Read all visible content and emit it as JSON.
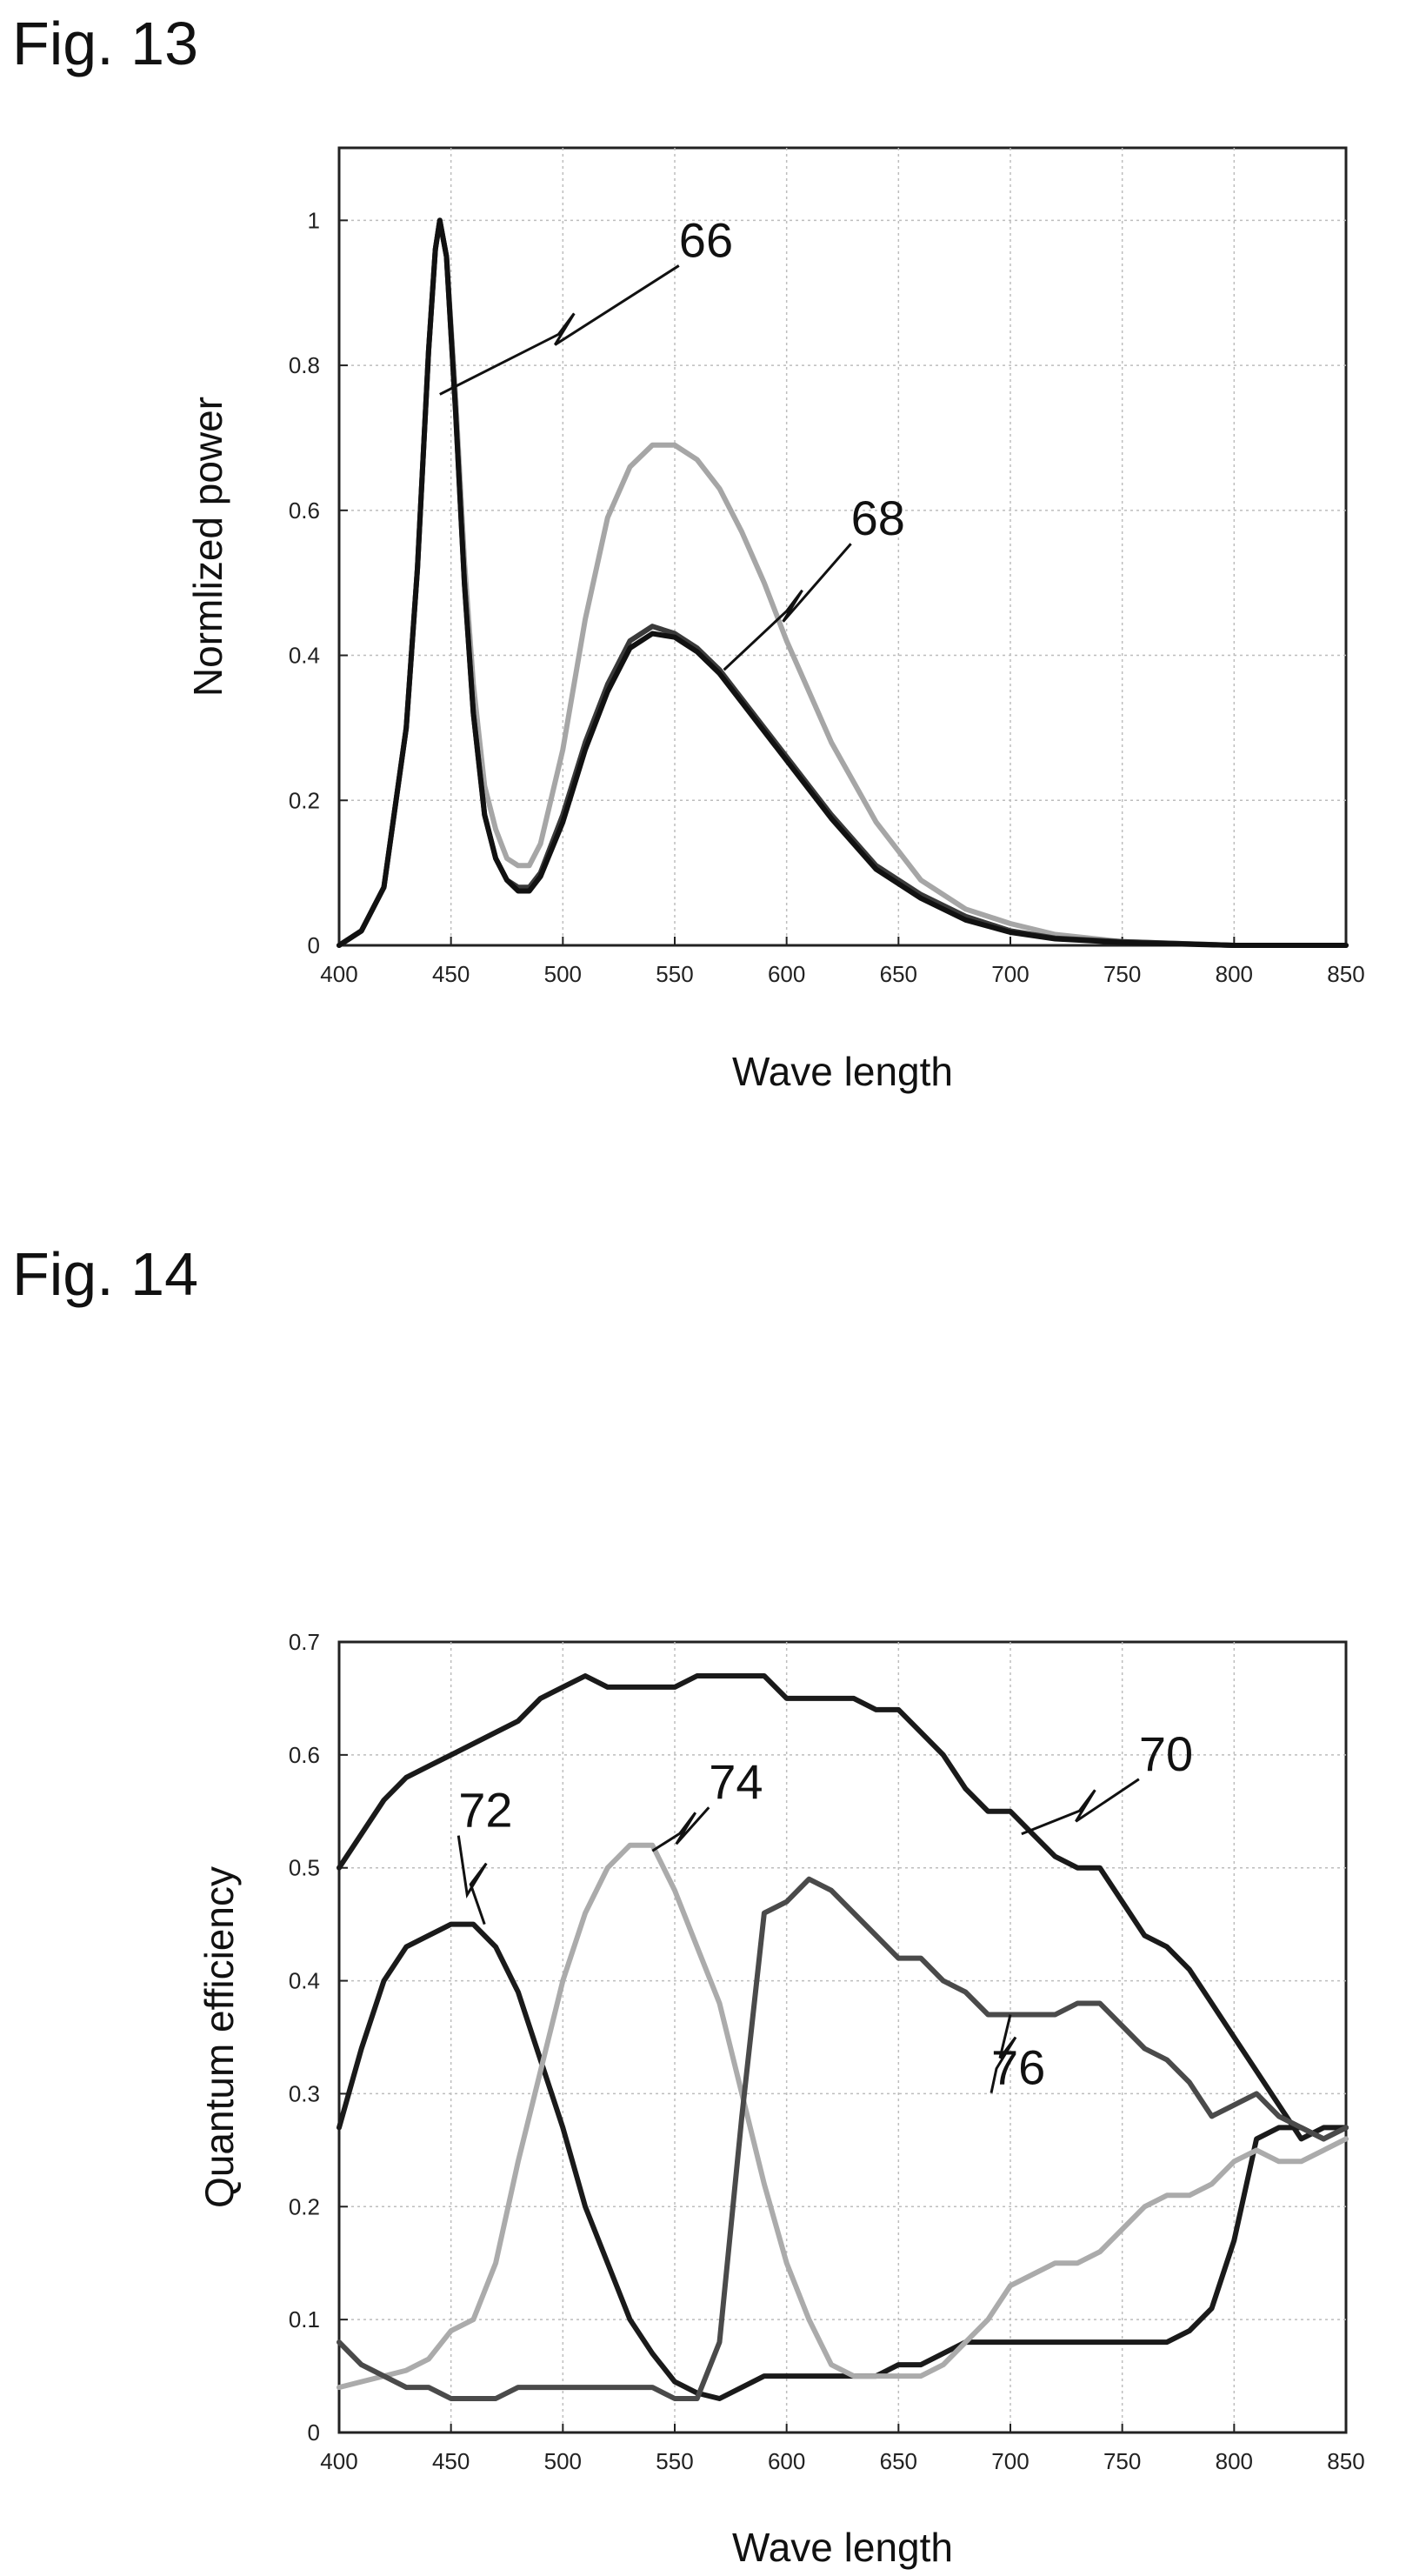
{
  "figures": {
    "fig13_label": "Fig. 13",
    "fig14_label": "Fig. 14"
  },
  "chart_data": [
    {
      "type": "line",
      "figure": "Fig. 13",
      "xlabel": "Wave length",
      "ylabel": "Normlized power",
      "xlim": [
        400,
        850
      ],
      "ylim": [
        0,
        1.1
      ],
      "xticks": [
        400,
        450,
        500,
        550,
        600,
        650,
        700,
        750,
        800,
        850
      ],
      "yticks": [
        0,
        0.2,
        0.4,
        0.6,
        0.8,
        1
      ],
      "ytick_labels": [
        "0",
        "0.2",
        "0.4",
        "0.6",
        "0.8",
        "1"
      ],
      "grid": true,
      "annotations": [
        {
          "text": "66",
          "target_x": 445,
          "target_y": 0.76
        },
        {
          "text": "68",
          "target_x": 572,
          "target_y": 0.38
        }
      ],
      "series": [
        {
          "color": "#a6a6a6",
          "x": [
            400,
            410,
            420,
            430,
            435,
            440,
            443,
            445,
            448,
            452,
            456,
            460,
            465,
            470,
            475,
            480,
            485,
            490,
            500,
            510,
            520,
            530,
            540,
            550,
            560,
            570,
            580,
            590,
            600,
            620,
            640,
            660,
            680,
            700,
            720,
            750,
            800,
            850
          ],
          "y": [
            0.0,
            0.02,
            0.08,
            0.3,
            0.52,
            0.82,
            0.96,
            1.0,
            0.95,
            0.76,
            0.53,
            0.36,
            0.22,
            0.16,
            0.12,
            0.11,
            0.11,
            0.14,
            0.27,
            0.45,
            0.59,
            0.66,
            0.69,
            0.69,
            0.67,
            0.63,
            0.57,
            0.5,
            0.42,
            0.28,
            0.17,
            0.09,
            0.05,
            0.03,
            0.015,
            0.005,
            0.0,
            0.0
          ]
        },
        {
          "color": "#3a3a3a",
          "x": [
            400,
            410,
            420,
            430,
            435,
            440,
            443,
            445,
            448,
            452,
            456,
            460,
            465,
            470,
            475,
            480,
            485,
            490,
            500,
            510,
            520,
            530,
            540,
            550,
            560,
            570,
            580,
            590,
            600,
            620,
            640,
            660,
            680,
            700,
            720,
            750,
            800,
            850
          ],
          "y": [
            0.0,
            0.02,
            0.08,
            0.3,
            0.52,
            0.82,
            0.96,
            1.0,
            0.95,
            0.74,
            0.5,
            0.32,
            0.18,
            0.12,
            0.09,
            0.08,
            0.08,
            0.1,
            0.18,
            0.28,
            0.36,
            0.42,
            0.44,
            0.43,
            0.41,
            0.38,
            0.34,
            0.3,
            0.26,
            0.18,
            0.11,
            0.07,
            0.04,
            0.02,
            0.01,
            0.005,
            0.0,
            0.0
          ]
        },
        {
          "color": "#111111",
          "x": [
            400,
            410,
            420,
            430,
            435,
            440,
            443,
            445,
            448,
            452,
            456,
            460,
            465,
            470,
            475,
            480,
            485,
            490,
            500,
            510,
            520,
            530,
            540,
            550,
            560,
            570,
            580,
            590,
            600,
            620,
            640,
            660,
            680,
            700,
            720,
            750,
            800,
            850
          ],
          "y": [
            0.0,
            0.02,
            0.08,
            0.3,
            0.52,
            0.82,
            0.96,
            1.0,
            0.95,
            0.74,
            0.5,
            0.32,
            0.18,
            0.12,
            0.09,
            0.075,
            0.075,
            0.095,
            0.17,
            0.27,
            0.35,
            0.41,
            0.43,
            0.425,
            0.405,
            0.375,
            0.335,
            0.295,
            0.255,
            0.175,
            0.105,
            0.065,
            0.035,
            0.018,
            0.009,
            0.004,
            0.0,
            0.0
          ]
        }
      ]
    },
    {
      "type": "line",
      "figure": "Fig. 14",
      "xlabel": "Wave length",
      "ylabel": "Quantum efficiency",
      "xlim": [
        400,
        850
      ],
      "ylim": [
        0,
        0.7
      ],
      "xticks": [
        400,
        450,
        500,
        550,
        600,
        650,
        700,
        750,
        800,
        850
      ],
      "yticks": [
        0,
        0.1,
        0.2,
        0.3,
        0.4,
        0.5,
        0.6,
        0.7
      ],
      "ytick_labels": [
        "0",
        "0.1",
        "0.2",
        "0.3",
        "0.4",
        "0.5",
        "0.6",
        "0.7"
      ],
      "grid": true,
      "annotations": [
        {
          "text": "70",
          "target_x": 705,
          "target_y": 0.53
        },
        {
          "text": "72",
          "target_x": 465,
          "target_y": 0.45
        },
        {
          "text": "74",
          "target_x": 540,
          "target_y": 0.515
        },
        {
          "text": "76",
          "target_x": 700,
          "target_y": 0.37
        }
      ],
      "series": [
        {
          "color": "#1a1a1a",
          "x": [
            400,
            410,
            420,
            430,
            440,
            450,
            460,
            470,
            480,
            490,
            500,
            510,
            520,
            530,
            540,
            550,
            560,
            570,
            580,
            590,
            600,
            610,
            620,
            630,
            640,
            650,
            660,
            670,
            680,
            690,
            700,
            710,
            720,
            730,
            740,
            750,
            760,
            770,
            780,
            790,
            800,
            810,
            820,
            830,
            840,
            850
          ],
          "y": [
            0.5,
            0.53,
            0.56,
            0.58,
            0.59,
            0.6,
            0.61,
            0.62,
            0.63,
            0.65,
            0.66,
            0.67,
            0.66,
            0.66,
            0.66,
            0.66,
            0.67,
            0.67,
            0.67,
            0.67,
            0.65,
            0.65,
            0.65,
            0.65,
            0.64,
            0.64,
            0.62,
            0.6,
            0.57,
            0.55,
            0.55,
            0.53,
            0.51,
            0.5,
            0.5,
            0.47,
            0.44,
            0.43,
            0.41,
            0.38,
            0.35,
            0.32,
            0.29,
            0.26,
            0.27,
            0.27
          ]
        },
        {
          "color": "#1a1a1a",
          "x": [
            400,
            410,
            420,
            430,
            440,
            450,
            460,
            470,
            480,
            490,
            500,
            510,
            520,
            530,
            540,
            550,
            560,
            570,
            580,
            590,
            600,
            610,
            620,
            630,
            640,
            650,
            660,
            670,
            680,
            690,
            700,
            710,
            720,
            730,
            740,
            750,
            760,
            770,
            780,
            790,
            800,
            810,
            820,
            830,
            840,
            850
          ],
          "y": [
            0.27,
            0.34,
            0.4,
            0.43,
            0.44,
            0.45,
            0.45,
            0.43,
            0.39,
            0.33,
            0.27,
            0.2,
            0.15,
            0.1,
            0.07,
            0.045,
            0.035,
            0.03,
            0.04,
            0.05,
            0.05,
            0.05,
            0.05,
            0.05,
            0.05,
            0.06,
            0.06,
            0.07,
            0.08,
            0.08,
            0.08,
            0.08,
            0.08,
            0.08,
            0.08,
            0.08,
            0.08,
            0.08,
            0.09,
            0.11,
            0.17,
            0.26,
            0.27,
            0.27,
            0.26,
            0.27
          ]
        },
        {
          "color": "#ababab",
          "x": [
            400,
            410,
            420,
            430,
            440,
            450,
            460,
            470,
            480,
            490,
            500,
            510,
            520,
            530,
            540,
            550,
            560,
            570,
            580,
            590,
            600,
            610,
            620,
            630,
            640,
            650,
            660,
            670,
            680,
            690,
            700,
            710,
            720,
            730,
            740,
            750,
            760,
            770,
            780,
            790,
            800,
            810,
            820,
            830,
            840,
            850
          ],
          "y": [
            0.04,
            0.045,
            0.05,
            0.055,
            0.065,
            0.09,
            0.1,
            0.15,
            0.24,
            0.32,
            0.4,
            0.46,
            0.5,
            0.52,
            0.52,
            0.48,
            0.43,
            0.38,
            0.3,
            0.22,
            0.15,
            0.1,
            0.06,
            0.05,
            0.05,
            0.05,
            0.05,
            0.06,
            0.08,
            0.1,
            0.13,
            0.14,
            0.15,
            0.15,
            0.16,
            0.18,
            0.2,
            0.21,
            0.21,
            0.22,
            0.24,
            0.25,
            0.24,
            0.24,
            0.25,
            0.26
          ]
        },
        {
          "color": "#4a4a4a",
          "x": [
            400,
            410,
            420,
            430,
            440,
            450,
            460,
            470,
            480,
            490,
            500,
            510,
            520,
            530,
            540,
            550,
            560,
            570,
            580,
            590,
            600,
            610,
            620,
            630,
            640,
            650,
            660,
            670,
            680,
            690,
            700,
            710,
            720,
            730,
            740,
            750,
            760,
            770,
            780,
            790,
            800,
            810,
            820,
            830,
            840,
            850
          ],
          "y": [
            0.08,
            0.06,
            0.05,
            0.04,
            0.04,
            0.03,
            0.03,
            0.03,
            0.04,
            0.04,
            0.04,
            0.04,
            0.04,
            0.04,
            0.04,
            0.03,
            0.03,
            0.08,
            0.28,
            0.46,
            0.47,
            0.49,
            0.48,
            0.46,
            0.44,
            0.42,
            0.42,
            0.4,
            0.39,
            0.37,
            0.37,
            0.37,
            0.37,
            0.38,
            0.38,
            0.36,
            0.34,
            0.33,
            0.31,
            0.28,
            0.29,
            0.3,
            0.28,
            0.27,
            0.26,
            0.27
          ]
        }
      ]
    }
  ]
}
